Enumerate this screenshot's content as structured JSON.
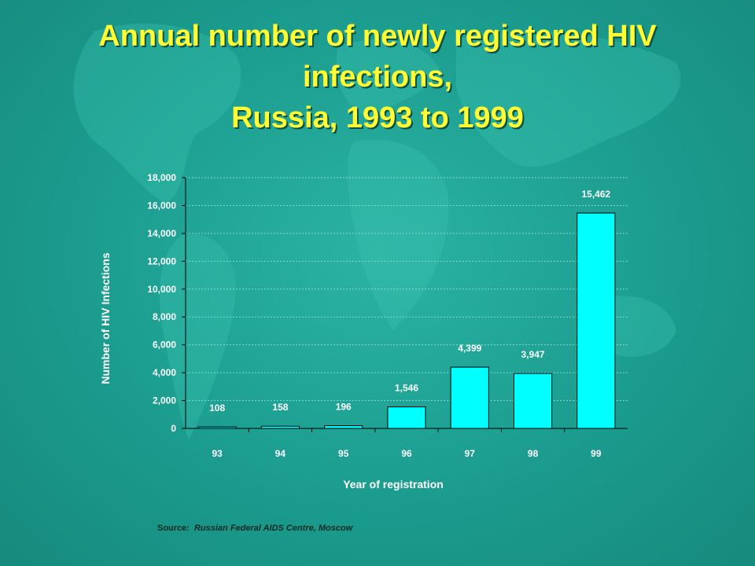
{
  "title_lines": [
    "Annual number of newly registered HIV",
    "infections,",
    "Russia, 1993 to 1999"
  ],
  "colors": {
    "title": "#ffff33",
    "bar": "#00ffff",
    "axis_text": "#ffffff",
    "background": "#1ea696"
  },
  "chart_data": {
    "type": "bar",
    "categories": [
      "93",
      "94",
      "95",
      "96",
      "97",
      "98",
      "99"
    ],
    "values": [
      108,
      158,
      196,
      1546,
      4399,
      3947,
      15462
    ],
    "data_labels": [
      "108",
      "158",
      "196",
      "1,546",
      "4,399",
      "3,947",
      "15,462"
    ],
    "xlabel": "Year of registration",
    "ylabel": "Number of HIV Infections",
    "ylim": [
      0,
      18000
    ],
    "yticks": [
      0,
      2000,
      4000,
      6000,
      8000,
      10000,
      12000,
      14000,
      16000,
      18000
    ],
    "ytick_labels": [
      "0",
      "2,000",
      "4,000",
      "6,000",
      "8,000",
      "10,000",
      "12,000",
      "14,000",
      "16,000",
      "18,000"
    ],
    "grid": true,
    "legend": "none"
  },
  "source": {
    "label": "Source:",
    "text": "Russian Federal AIDS Centre, Moscow"
  }
}
